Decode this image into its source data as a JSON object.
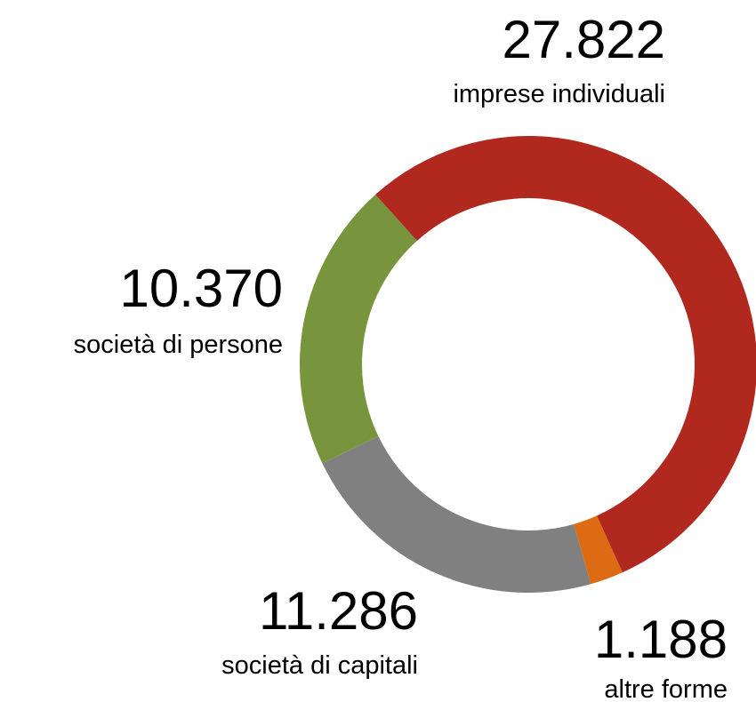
{
  "chart_data": {
    "type": "donut",
    "categories": [
      "imprese individuali",
      "altre forme",
      "società di capitali",
      "società di persone"
    ],
    "values": [
      27822,
      1188,
      11286,
      10370
    ],
    "value_labels": [
      "27.822",
      "1.188",
      "11.286",
      "10.370"
    ],
    "colors": [
      "#b0281e",
      "#dc6b14",
      "#808080",
      "#78943c"
    ]
  }
}
